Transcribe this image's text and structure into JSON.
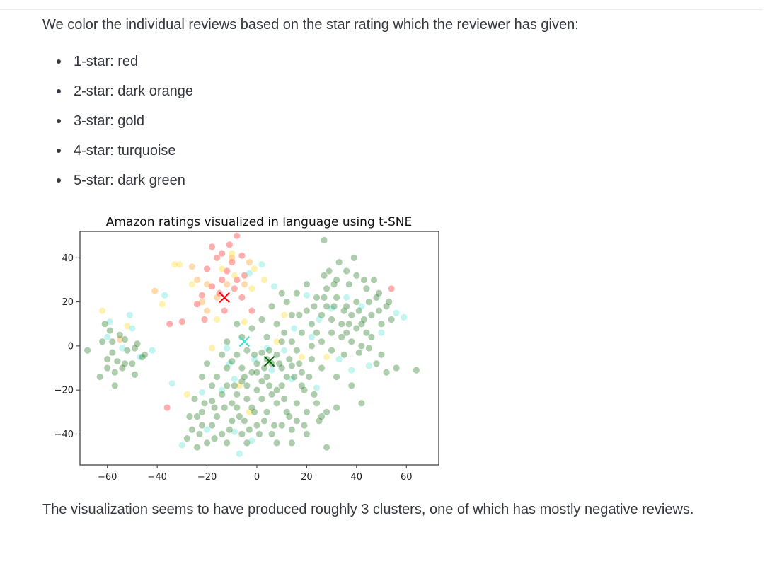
{
  "intro_text": "We color the individual reviews based on the star rating which the reviewer has given:",
  "ratings": [
    {
      "label": "1-star: red",
      "color": "#ff0000"
    },
    {
      "label": "2-star: dark orange",
      "color": "#ff8c00"
    },
    {
      "label": "3-star: gold",
      "color": "#ffd700"
    },
    {
      "label": "4-star: turquoise",
      "color": "#40e0d0"
    },
    {
      "label": "5-star: dark green",
      "color": "#006400"
    }
  ],
  "conclusion_text": "The visualization seems to have produced roughly 3 clusters, one of which has mostly negative reviews.",
  "chart_data": {
    "type": "scatter",
    "title": "Amazon ratings visualized in language using t-SNE",
    "xlabel": "",
    "ylabel": "",
    "xlim": [
      -71,
      73
    ],
    "ylim": [
      -54,
      52
    ],
    "xticks": [
      -60,
      -40,
      -20,
      0,
      20,
      40,
      60
    ],
    "yticks": [
      -40,
      -20,
      0,
      20,
      40
    ],
    "xtick_labels": [
      "−60",
      "−40",
      "−20",
      "0",
      "20",
      "40",
      "60"
    ],
    "ytick_labels": [
      "−40",
      "−20",
      "0",
      "20",
      "40"
    ],
    "grid": false,
    "series": [
      {
        "color": "#ff0000",
        "points": [
          [
            -8,
            50
          ],
          [
            -18,
            45
          ],
          [
            -11,
            46
          ],
          [
            -14,
            42
          ],
          [
            -6,
            41
          ],
          [
            -10,
            38
          ],
          [
            -16,
            40
          ],
          [
            -20,
            35
          ],
          [
            -12,
            34
          ],
          [
            -8,
            30
          ],
          [
            -14,
            30
          ],
          [
            -18,
            27
          ],
          [
            -5,
            32
          ],
          [
            -9,
            26
          ],
          [
            -15,
            24
          ],
          [
            -22,
            23
          ],
          [
            -24,
            19
          ],
          [
            -21,
            12
          ],
          [
            -30,
            11
          ],
          [
            -35,
            10
          ],
          [
            -2,
            16
          ],
          [
            54,
            26
          ],
          [
            -36,
            -28
          ],
          [
            -13,
            16
          ],
          [
            -6,
            22
          ]
        ]
      },
      {
        "color": "#ff8c00",
        "points": [
          [
            -41,
            25
          ],
          [
            -20,
            28
          ],
          [
            -16,
            22
          ],
          [
            -22,
            20
          ],
          [
            -12,
            28
          ],
          [
            -26,
            36
          ],
          [
            -5,
            28
          ],
          [
            -20,
            16
          ],
          [
            -55,
            3
          ],
          [
            -10,
            40
          ],
          [
            -3,
            38
          ],
          [
            -24,
            30
          ]
        ]
      },
      {
        "color": "#ffd700",
        "points": [
          [
            -62,
            16
          ],
          [
            -33,
            37
          ],
          [
            -31,
            37
          ],
          [
            -26,
            28
          ],
          [
            -38,
            19
          ],
          [
            -16,
            12
          ],
          [
            -9,
            32
          ],
          [
            -2,
            26
          ],
          [
            3,
            30
          ],
          [
            -18,
            -1
          ],
          [
            -7,
            -18
          ],
          [
            -28,
            -22
          ],
          [
            -5,
            11
          ],
          [
            8,
            2
          ],
          [
            18,
            -5
          ],
          [
            -3,
            -30
          ],
          [
            28,
            -5
          ],
          [
            -52,
            9
          ],
          [
            -14,
            35
          ],
          [
            -1,
            35
          ],
          [
            11,
            14
          ],
          [
            -10,
            42
          ]
        ]
      },
      {
        "color": "#40e0d0",
        "points": [
          [
            -37,
            23
          ],
          [
            -51,
            14
          ],
          [
            -59,
            11
          ],
          [
            -50,
            8
          ],
          [
            -47,
            -5
          ],
          [
            -54,
            -1
          ],
          [
            -34,
            -17
          ],
          [
            -22,
            -21
          ],
          [
            -14,
            -20
          ],
          [
            -9,
            -15
          ],
          [
            -11,
            -8
          ],
          [
            -1,
            -6
          ],
          [
            4,
            -1
          ],
          [
            6,
            -11
          ],
          [
            11,
            -2
          ],
          [
            15,
            8
          ],
          [
            22,
            4
          ],
          [
            25,
            12
          ],
          [
            30,
            17
          ],
          [
            33,
            -6
          ],
          [
            38,
            -11
          ],
          [
            45,
            -9
          ],
          [
            56,
            15
          ],
          [
            59,
            13
          ],
          [
            42,
            18
          ],
          [
            36,
            22
          ],
          [
            24,
            -19
          ],
          [
            -30,
            -45
          ],
          [
            -20,
            -38
          ],
          [
            -9,
            -39
          ],
          [
            -2,
            -43
          ],
          [
            -7,
            -49
          ],
          [
            2,
            37
          ],
          [
            7,
            27
          ],
          [
            -3,
            33
          ],
          [
            -12,
            -1
          ],
          [
            20,
            23
          ],
          [
            50,
            6
          ],
          [
            -60,
            4
          ],
          [
            -42,
            -2
          ],
          [
            14,
            -15
          ]
        ]
      },
      {
        "color": "#006400",
        "points": [
          [
            -68,
            -2
          ],
          [
            -63,
            -14
          ],
          [
            -58,
            -3
          ],
          [
            -56,
            -7
          ],
          [
            -60,
            -10
          ],
          [
            -53,
            -8
          ],
          [
            -59,
            7
          ],
          [
            -49,
            -13
          ],
          [
            -57,
            -18
          ],
          [
            -62,
            2
          ],
          [
            -58,
            2
          ],
          [
            -55,
            5
          ],
          [
            -52,
            -2
          ],
          [
            -46,
            -5
          ],
          [
            -49,
            -1
          ],
          [
            -54,
            -10
          ],
          [
            -57,
            -12
          ],
          [
            -45,
            -4
          ],
          [
            -53,
            3
          ],
          [
            -48,
            1
          ],
          [
            -50,
            -8
          ],
          [
            -60,
            -6
          ],
          [
            -61,
            10
          ],
          [
            27,
            48
          ],
          [
            -8,
            10
          ],
          [
            -12,
            2
          ],
          [
            -4,
            -2
          ],
          [
            -10,
            -7
          ],
          [
            2,
            -3
          ],
          [
            6,
            -8
          ],
          [
            10,
            -10
          ],
          [
            4,
            -14
          ],
          [
            -2,
            -12
          ],
          [
            -6,
            -16
          ],
          [
            0,
            -20
          ],
          [
            8,
            -20
          ],
          [
            12,
            -14
          ],
          [
            14,
            -9
          ],
          [
            18,
            -12
          ],
          [
            22,
            -6
          ],
          [
            16,
            -2
          ],
          [
            10,
            2
          ],
          [
            4,
            4
          ],
          [
            0,
            -8
          ],
          [
            -4,
            -24
          ],
          [
            -8,
            -28
          ],
          [
            -14,
            -22
          ],
          [
            -18,
            -25
          ],
          [
            -22,
            -30
          ],
          [
            -16,
            -32
          ],
          [
            -10,
            -34
          ],
          [
            -6,
            -40
          ],
          [
            -14,
            -40
          ],
          [
            -20,
            -44
          ],
          [
            -26,
            -38
          ],
          [
            -24,
            -32
          ],
          [
            -28,
            -42
          ],
          [
            0,
            -36
          ],
          [
            4,
            -30
          ],
          [
            8,
            -26
          ],
          [
            12,
            -30
          ],
          [
            6,
            -40
          ],
          [
            14,
            -38
          ],
          [
            20,
            -30
          ],
          [
            26,
            -32
          ],
          [
            28,
            -46
          ],
          [
            -2,
            -28
          ],
          [
            -10,
            -26
          ],
          [
            2,
            -24
          ],
          [
            -4,
            -44
          ],
          [
            10,
            -36
          ],
          [
            16,
            -26
          ],
          [
            24,
            -26
          ],
          [
            28,
            -30
          ],
          [
            32,
            -28
          ],
          [
            18,
            -18
          ],
          [
            26,
            -10
          ],
          [
            32,
            -14
          ],
          [
            38,
            -18
          ],
          [
            42,
            -26
          ],
          [
            48,
            -8
          ],
          [
            50,
            -4
          ],
          [
            52,
            -12
          ],
          [
            46,
            4
          ],
          [
            42,
            10
          ],
          [
            38,
            14
          ],
          [
            34,
            10
          ],
          [
            30,
            6
          ],
          [
            26,
            2
          ],
          [
            22,
            10
          ],
          [
            20,
            16
          ],
          [
            24,
            22
          ],
          [
            28,
            26
          ],
          [
            32,
            30
          ],
          [
            36,
            34
          ],
          [
            40,
            32
          ],
          [
            44,
            26
          ],
          [
            48,
            22
          ],
          [
            52,
            18
          ],
          [
            54,
            12
          ],
          [
            50,
            10
          ],
          [
            46,
            14
          ],
          [
            40,
            20
          ],
          [
            36,
            18
          ],
          [
            32,
            22
          ],
          [
            28,
            18
          ],
          [
            26,
            14
          ],
          [
            24,
            6
          ],
          [
            30,
            12
          ],
          [
            34,
            4
          ],
          [
            38,
            2
          ],
          [
            42,
            0
          ],
          [
            44,
            6
          ],
          [
            40,
            8
          ],
          [
            36,
            6
          ],
          [
            30,
            -2
          ],
          [
            22,
            0
          ],
          [
            18,
            6
          ],
          [
            14,
            14
          ],
          [
            12,
            20
          ],
          [
            16,
            24
          ],
          [
            20,
            28
          ],
          [
            10,
            24
          ],
          [
            6,
            18
          ],
          [
            14,
            2
          ],
          [
            8,
            10
          ],
          [
            2,
            12
          ],
          [
            -2,
            8
          ],
          [
            -6,
            4
          ],
          [
            4,
            -6
          ],
          [
            8,
            -4
          ],
          [
            -8,
            -4
          ],
          [
            -12,
            -10
          ],
          [
            -16,
            -14
          ],
          [
            -20,
            -8
          ],
          [
            -14,
            -4
          ],
          [
            -6,
            -10
          ],
          [
            2,
            -16
          ],
          [
            6,
            -22
          ],
          [
            10,
            -18
          ],
          [
            0,
            -12
          ],
          [
            -4,
            -18
          ],
          [
            -8,
            -22
          ],
          [
            -12,
            -18
          ],
          [
            -18,
            -18
          ],
          [
            -22,
            -14
          ],
          [
            -18,
            -36
          ],
          [
            -12,
            -44
          ],
          [
            -24,
            -46
          ],
          [
            -22,
            -36
          ],
          [
            16,
            -34
          ],
          [
            20,
            -40
          ],
          [
            14,
            -44
          ],
          [
            8,
            -44
          ],
          [
            64,
            -11
          ],
          [
            56,
            -10
          ],
          [
            35,
            -4
          ],
          [
            41,
            -3
          ],
          [
            45,
            -1
          ],
          [
            39,
            40
          ],
          [
            33,
            38
          ],
          [
            29,
            34
          ],
          [
            31,
            28
          ],
          [
            37,
            28
          ],
          [
            43,
            30
          ],
          [
            47,
            30
          ],
          [
            49,
            24
          ],
          [
            45,
            20
          ],
          [
            41,
            16
          ],
          [
            35,
            16
          ],
          [
            31,
            18
          ],
          [
            27,
            22
          ],
          [
            37,
            10
          ],
          [
            43,
            12
          ],
          [
            49,
            16
          ],
          [
            53,
            20
          ],
          [
            27,
            32
          ],
          [
            13,
            -6
          ],
          [
            19,
            -20
          ],
          [
            23,
            -22
          ],
          [
            3,
            -34
          ],
          [
            -3,
            -38
          ],
          [
            -7,
            -32
          ],
          [
            -1,
            -30
          ],
          [
            5,
            -18
          ],
          [
            11,
            -24
          ],
          [
            15,
            -14
          ],
          [
            21,
            -14
          ],
          [
            17,
            -8
          ],
          [
            9,
            -8
          ],
          [
            3,
            -10
          ],
          [
            -1,
            -4
          ],
          [
            -5,
            -14
          ],
          [
            -9,
            -18
          ],
          [
            -13,
            -28
          ],
          [
            -17,
            -28
          ],
          [
            -21,
            -26
          ],
          [
            -25,
            -24
          ],
          [
            -17,
            -42
          ],
          [
            -11,
            -38
          ],
          [
            -5,
            -34
          ],
          [
            1,
            -40
          ],
          [
            7,
            -36
          ],
          [
            13,
            -32
          ],
          [
            19,
            -36
          ],
          [
            25,
            -34
          ],
          [
            -27,
            -32
          ],
          [
            -23,
            -40
          ],
          [
            5,
            -2
          ],
          [
            11,
            6
          ],
          [
            17,
            14
          ],
          [
            23,
            18
          ]
        ]
      }
    ],
    "centroids": [
      {
        "color": "#ff0000",
        "x": -13,
        "y": 22
      },
      {
        "color": "#40e0d0",
        "x": -5,
        "y": 2
      },
      {
        "color": "#006400",
        "x": 5,
        "y": -7
      }
    ]
  }
}
